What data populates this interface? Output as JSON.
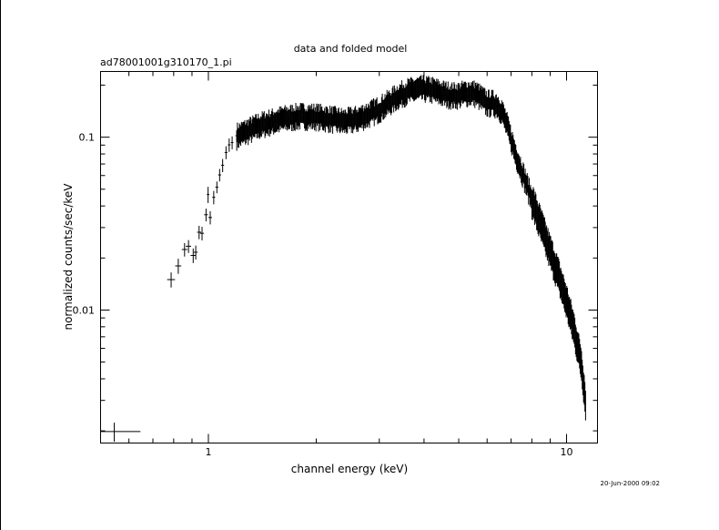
{
  "chart_data": {
    "type": "scatter",
    "title": "data and folded model",
    "subtitle": "ad78001001g310170_1.pi",
    "xlabel": "channel energy (keV)",
    "ylabel": "normalized counts/sec/keV",
    "x_scale": "log",
    "y_scale": "log",
    "xlim": [
      0.5,
      12.2
    ],
    "ylim": [
      0.0017,
      0.24
    ],
    "x_ticks": [
      {
        "v": 1,
        "label": "1"
      },
      {
        "v": 10,
        "label": "10"
      }
    ],
    "y_ticks": [
      {
        "v": 0.01,
        "label": "0.01"
      },
      {
        "v": 0.1,
        "label": "0.1"
      }
    ],
    "grid": false,
    "timestamp": "20-Jun-2000 09:02",
    "series": [
      {
        "points": [
          {
            "x": 0.546,
            "xerr": 0.1,
            "y": 0.00198,
            "yerr": 0.00025
          },
          {
            "x": 0.787,
            "xerr": 0.02,
            "y": 0.015,
            "yerr": 0.0015
          },
          {
            "x": 0.824,
            "xerr": 0.016,
            "y": 0.018,
            "yerr": 0.0018
          },
          {
            "x": 0.858,
            "xerr": 0.015,
            "y": 0.0224,
            "yerr": 0.002
          },
          {
            "x": 0.88,
            "xerr": 0.015,
            "y": 0.0234,
            "yerr": 0.002
          },
          {
            "x": 0.907,
            "xerr": 0.015,
            "y": 0.0207,
            "yerr": 0.002
          },
          {
            "x": 0.922,
            "xerr": 0.012,
            "y": 0.0216,
            "yerr": 0.002
          },
          {
            "x": 0.942,
            "xerr": 0.012,
            "y": 0.0282,
            "yerr": 0.0025
          },
          {
            "x": 0.96,
            "xerr": 0.012,
            "y": 0.0278,
            "yerr": 0.0025
          },
          {
            "x": 0.985,
            "xerr": 0.012,
            "y": 0.0356,
            "yerr": 0.003
          },
          {
            "x": 1.012,
            "xerr": 0.012,
            "y": 0.0343,
            "yerr": 0.003
          },
          {
            "x": 0.998,
            "xerr": 0.008,
            "y": 0.0466,
            "yerr": 0.005
          },
          {
            "x": 1.035,
            "xerr": 0.01,
            "y": 0.0449,
            "yerr": 0.004
          },
          {
            "x": 1.056,
            "xerr": 0.01,
            "y": 0.0514,
            "yerr": 0.004
          },
          {
            "x": 1.075,
            "xerr": 0.01,
            "y": 0.0605,
            "yerr": 0.005
          },
          {
            "x": 1.096,
            "xerr": 0.01,
            "y": 0.0688,
            "yerr": 0.006
          },
          {
            "x": 1.12,
            "xerr": 0.01,
            "y": 0.0816,
            "yerr": 0.007
          },
          {
            "x": 1.143,
            "xerr": 0.01,
            "y": 0.0903,
            "yerr": 0.008
          },
          {
            "x": 1.165,
            "xerr": 0.01,
            "y": 0.0931,
            "yerr": 0.008
          },
          {
            "x": 1.2,
            "xerr": 0.01,
            "y": 0.102,
            "yerr": 0.008
          }
        ],
        "continuum": {
          "x": [
            1.2,
            1.4,
            1.6,
            1.8,
            2.0,
            2.2,
            2.4,
            2.6,
            2.8,
            3.0,
            3.2,
            3.4,
            3.6,
            3.8,
            4.0,
            4.2,
            4.4,
            4.6,
            4.8,
            5.0,
            5.2,
            5.4,
            5.6,
            5.8,
            6.0,
            6.2,
            6.4,
            6.6,
            6.8,
            7.0,
            7.2,
            7.5,
            8.0,
            8.5,
            9.0,
            9.5,
            10.0,
            10.5,
            11.0,
            11.3
          ],
          "y": [
            0.102,
            0.118,
            0.128,
            0.133,
            0.132,
            0.128,
            0.124,
            0.128,
            0.136,
            0.146,
            0.16,
            0.175,
            0.185,
            0.19,
            0.192,
            0.189,
            0.183,
            0.178,
            0.175,
            0.176,
            0.18,
            0.182,
            0.178,
            0.168,
            0.158,
            0.158,
            0.155,
            0.142,
            0.12,
            0.098,
            0.081,
            0.064,
            0.044,
            0.031,
            0.022,
            0.016,
            0.0114,
            0.0078,
            0.005,
            0.003
          ],
          "yerr_frac": 0.13,
          "scatter_frac": 0.06
        }
      }
    ]
  }
}
